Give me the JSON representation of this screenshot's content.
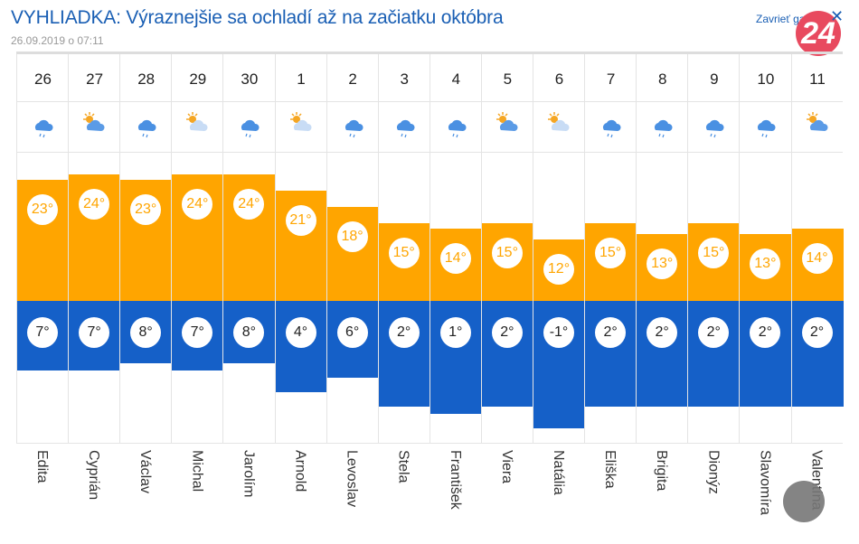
{
  "header": {
    "title": "VYHLIADKA: Výraznejšie sa ochladí až na začiatku októbra",
    "date": "26.09.2019 o 07:11",
    "close_label": "Zavrieť galériu",
    "close_icon": "close-icon",
    "logo": "24"
  },
  "colors": {
    "high": "#ffa500",
    "low": "#1560c8",
    "title": "#1a5fb4",
    "logo": "#e84a5f"
  },
  "forecast": [
    {
      "day": "26",
      "icon": "rain",
      "high": "23°",
      "low": "7°",
      "name": "Edita"
    },
    {
      "day": "27",
      "icon": "sun-cloud",
      "high": "24°",
      "low": "7°",
      "name": "Cyprián"
    },
    {
      "day": "28",
      "icon": "rain",
      "high": "23°",
      "low": "8°",
      "name": "Václav"
    },
    {
      "day": "29",
      "icon": "sun-light-cloud",
      "high": "24°",
      "low": "7°",
      "name": "Michal"
    },
    {
      "day": "30",
      "icon": "rain",
      "high": "24°",
      "low": "8°",
      "name": "Jarolím"
    },
    {
      "day": "1",
      "icon": "sun-light-cloud",
      "high": "21°",
      "low": "4°",
      "name": "Arnold"
    },
    {
      "day": "2",
      "icon": "rain",
      "high": "18°",
      "low": "6°",
      "name": "Levoslav"
    },
    {
      "day": "3",
      "icon": "rain",
      "high": "15°",
      "low": "2°",
      "name": "Stela"
    },
    {
      "day": "4",
      "icon": "rain",
      "high": "14°",
      "low": "1°",
      "name": "František"
    },
    {
      "day": "5",
      "icon": "sun-cloud",
      "high": "15°",
      "low": "2°",
      "name": "Viera"
    },
    {
      "day": "6",
      "icon": "sun-light-cloud",
      "high": "12°",
      "low": "-1°",
      "name": "Natália"
    },
    {
      "day": "7",
      "icon": "rain",
      "high": "15°",
      "low": "2°",
      "name": "Eliška"
    },
    {
      "day": "8",
      "icon": "rain",
      "high": "13°",
      "low": "2°",
      "name": "Brigita"
    },
    {
      "day": "9",
      "icon": "rain",
      "high": "15°",
      "low": "2°",
      "name": "Dionýz"
    },
    {
      "day": "10",
      "icon": "rain",
      "high": "13°",
      "low": "2°",
      "name": "Slavomíra"
    },
    {
      "day": "11",
      "icon": "sun-cloud",
      "high": "14°",
      "low": "2°",
      "name": "Valentína"
    }
  ]
}
